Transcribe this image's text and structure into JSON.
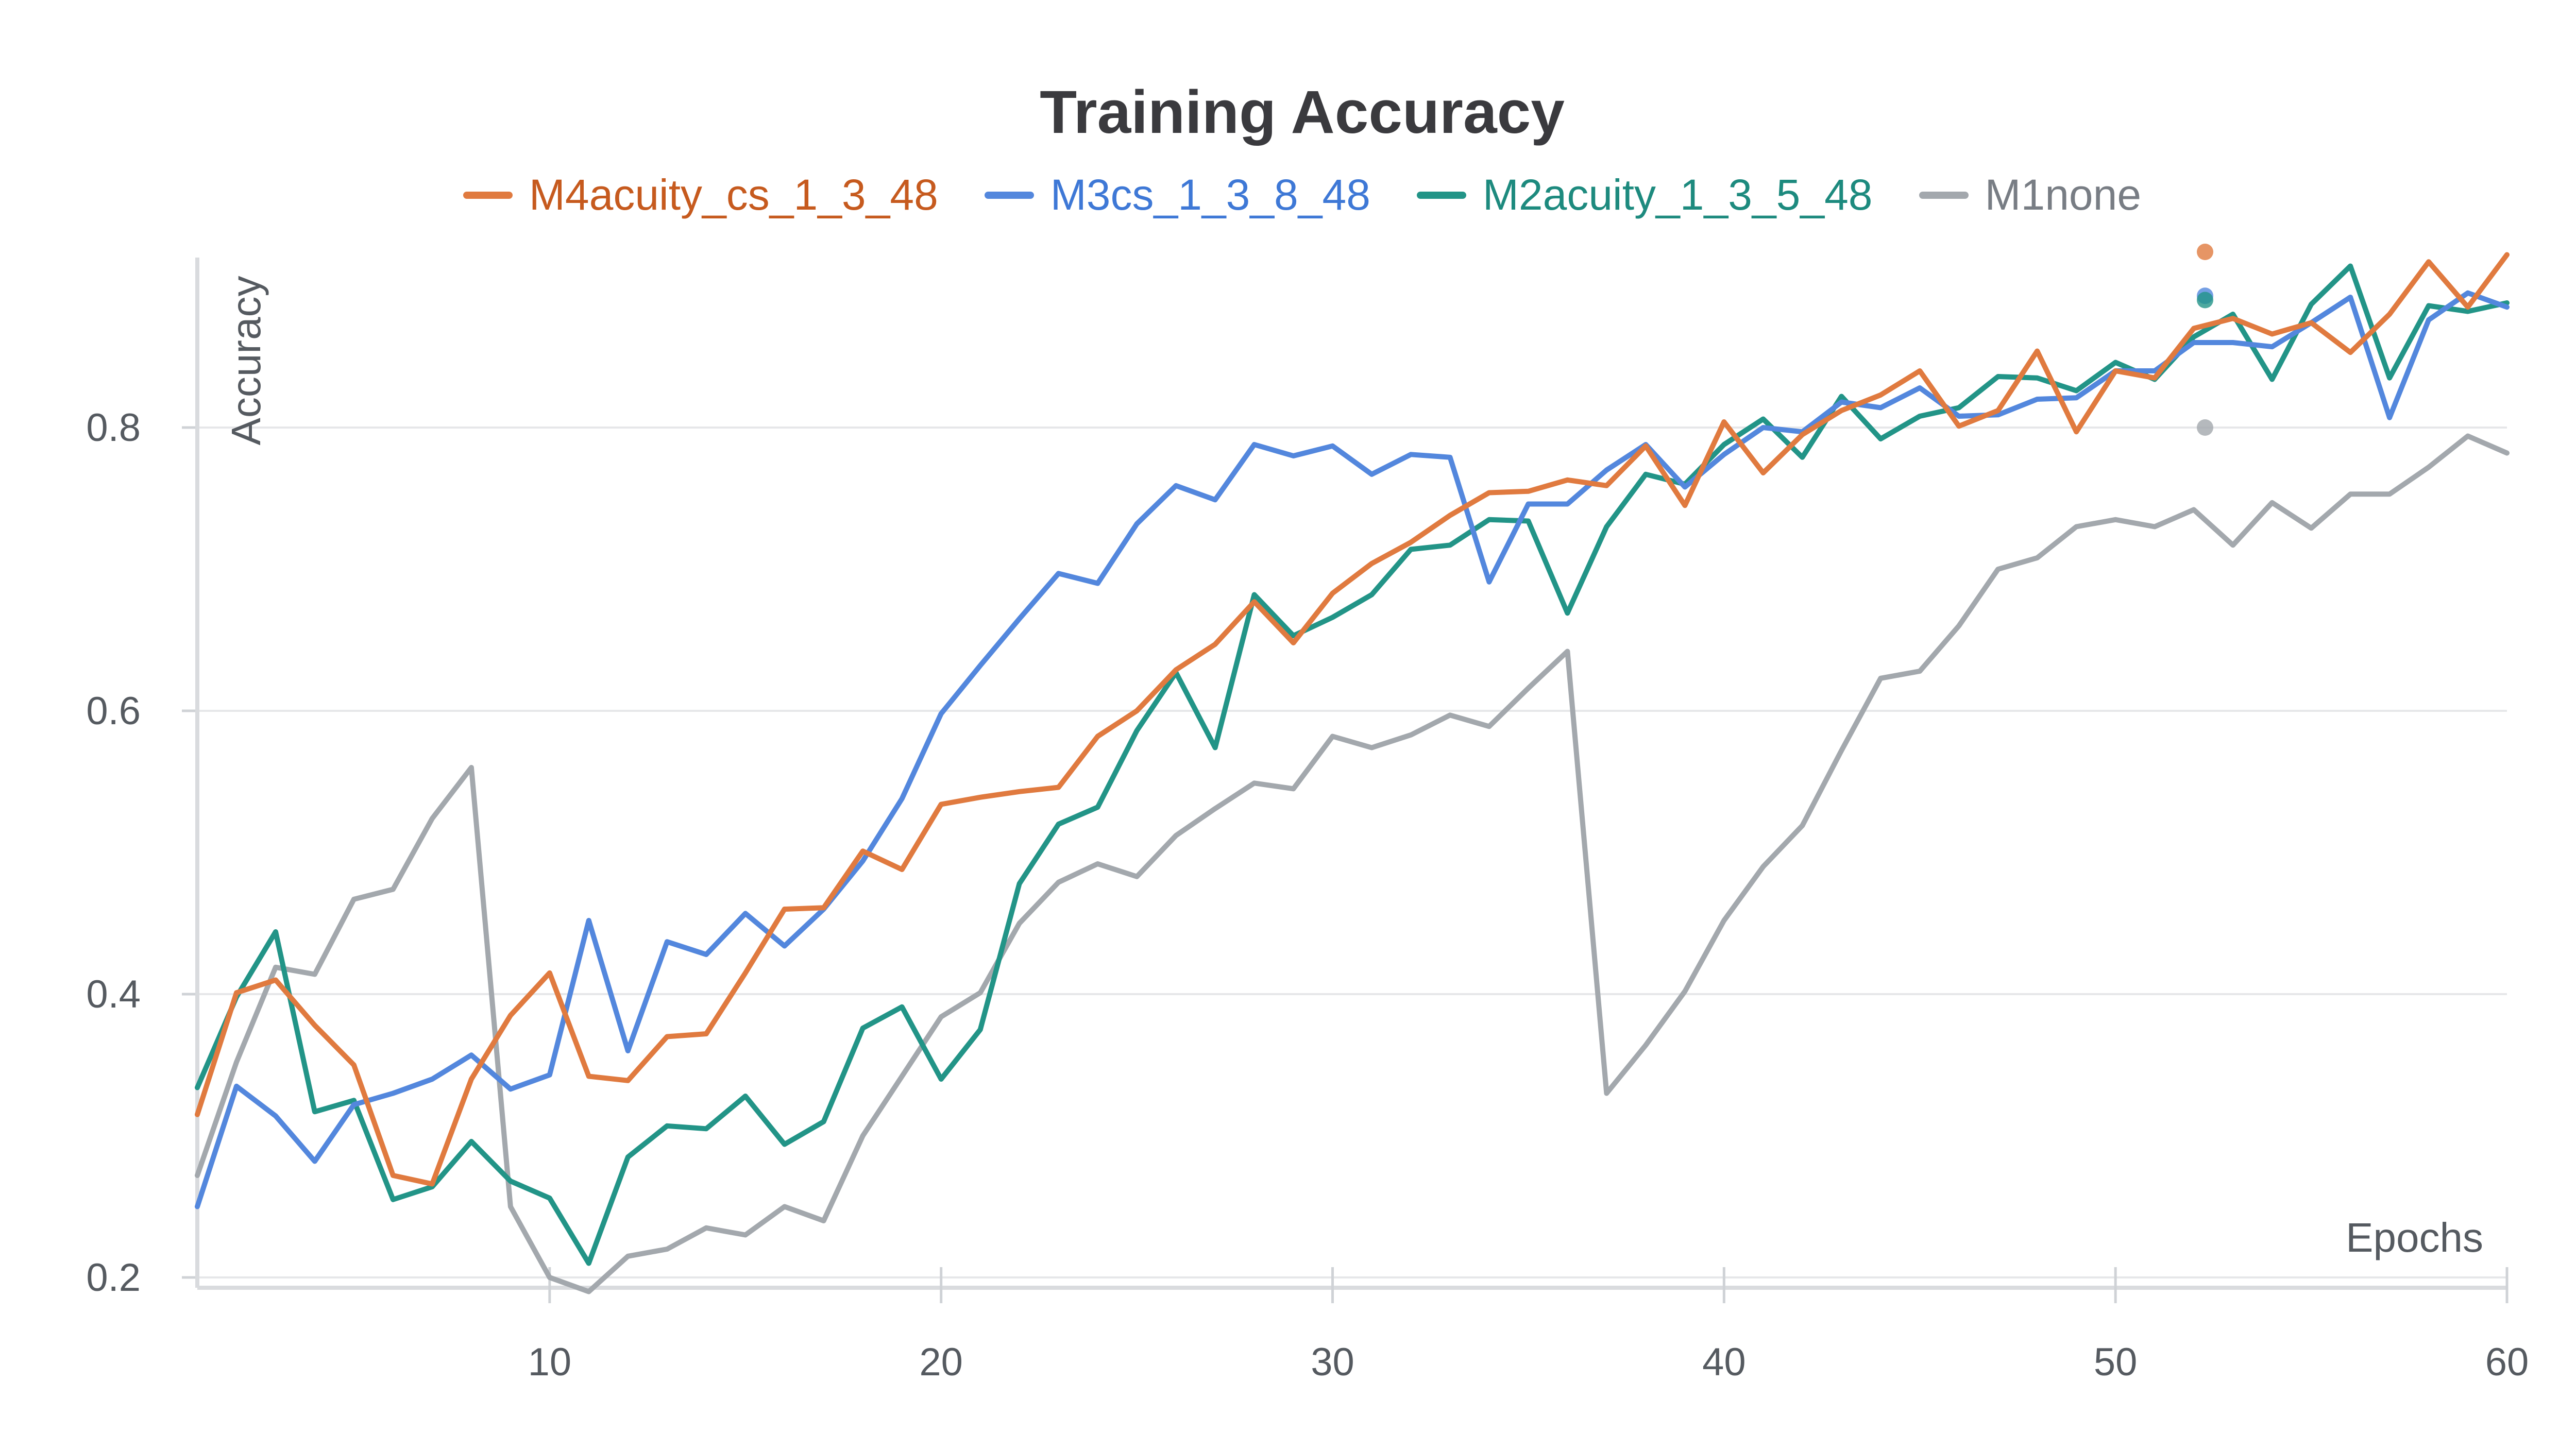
{
  "chart_data": {
    "type": "line",
    "title": "Training Accuracy",
    "xlabel": "Epochs",
    "ylabel": "Accuracy",
    "xlim": [
      1,
      60
    ],
    "ylim": [
      0.2,
      0.92
    ],
    "x_ticks": [
      10,
      20,
      30,
      40,
      50,
      60
    ],
    "y_ticks": [
      0.2,
      0.4,
      0.6,
      0.8
    ],
    "x_tick_labels": [
      "10",
      "20",
      "30",
      "40",
      "50",
      "60"
    ],
    "y_tick_labels": [
      "0.2",
      "0.4",
      "0.6",
      "0.8"
    ],
    "grid": true,
    "legend": "top-center",
    "series": [
      {
        "name": "M4acuity_cs_1_3_48",
        "color": "#e07a3f",
        "x": [
          1,
          2,
          3,
          4,
          5,
          6,
          7,
          8,
          9,
          10,
          11,
          12,
          13,
          14,
          15,
          16,
          17,
          18,
          19,
          20,
          21,
          22,
          23,
          24,
          25,
          26,
          27,
          28,
          29,
          30,
          31,
          32,
          33,
          34,
          35,
          36,
          37,
          38,
          39,
          40,
          41,
          42,
          43,
          44,
          45,
          46,
          47,
          48,
          49,
          50,
          51,
          52,
          53,
          54,
          55,
          56,
          57,
          58,
          59,
          60
        ],
        "values": [
          0.315,
          0.401,
          0.41,
          0.378,
          0.35,
          0.272,
          0.266,
          0.34,
          0.385,
          0.415,
          0.342,
          0.339,
          0.37,
          0.372,
          0.415,
          0.46,
          0.461,
          0.501,
          0.488,
          0.534,
          0.539,
          0.543,
          0.546,
          0.582,
          0.6,
          0.629,
          0.647,
          0.677,
          0.648,
          0.683,
          0.704,
          0.719,
          0.738,
          0.754,
          0.755,
          0.763,
          0.759,
          0.787,
          0.745,
          0.804,
          0.768,
          0.795,
          0.812,
          0.823,
          0.84,
          0.801,
          0.812,
          0.854,
          0.797,
          0.84,
          0.835,
          0.87,
          0.877,
          0.866,
          0.874,
          0.853,
          0.88,
          0.917,
          0.885,
          0.922
        ]
      },
      {
        "name": "M3cs_1_3_8_48",
        "color": "#5387dd",
        "x": [
          1,
          2,
          3,
          4,
          5,
          6,
          7,
          8,
          9,
          10,
          11,
          12,
          13,
          14,
          15,
          16,
          17,
          18,
          19,
          20,
          21,
          22,
          23,
          24,
          25,
          26,
          27,
          28,
          29,
          30,
          31,
          32,
          33,
          34,
          35,
          36,
          37,
          38,
          39,
          40,
          41,
          42,
          43,
          44,
          45,
          46,
          47,
          48,
          49,
          50,
          51,
          52,
          53,
          54,
          55,
          56,
          57,
          58,
          59,
          60
        ],
        "values": [
          0.25,
          0.335,
          0.314,
          0.282,
          0.322,
          0.33,
          0.34,
          0.357,
          0.333,
          0.343,
          0.452,
          0.36,
          0.437,
          0.428,
          0.457,
          0.434,
          0.46,
          0.494,
          0.538,
          0.598,
          0.632,
          0.665,
          0.697,
          0.69,
          0.732,
          0.759,
          0.749,
          0.788,
          0.78,
          0.787,
          0.767,
          0.781,
          0.779,
          0.691,
          0.746,
          0.746,
          0.77,
          0.788,
          0.758,
          0.781,
          0.8,
          0.797,
          0.818,
          0.814,
          0.828,
          0.808,
          0.809,
          0.82,
          0.821,
          0.84,
          0.84,
          0.86,
          0.86,
          0.857,
          0.874,
          0.892,
          0.807,
          0.876,
          0.895,
          0.885
        ]
      },
      {
        "name": "M2acuity_1_3_5_48",
        "color": "#229487",
        "x": [
          1,
          2,
          3,
          4,
          5,
          6,
          7,
          8,
          9,
          10,
          11,
          12,
          13,
          14,
          15,
          16,
          17,
          18,
          19,
          20,
          21,
          22,
          23,
          24,
          25,
          26,
          27,
          28,
          29,
          30,
          31,
          32,
          33,
          34,
          35,
          36,
          37,
          38,
          39,
          40,
          41,
          42,
          43,
          44,
          45,
          46,
          47,
          48,
          49,
          50,
          51,
          52,
          53,
          54,
          55,
          56,
          57,
          58,
          59,
          60
        ],
        "values": [
          0.334,
          0.398,
          0.444,
          0.317,
          0.325,
          0.255,
          0.264,
          0.296,
          0.268,
          0.256,
          0.21,
          0.285,
          0.307,
          0.305,
          0.328,
          0.294,
          0.31,
          0.376,
          0.391,
          0.34,
          0.375,
          0.478,
          0.52,
          0.532,
          0.586,
          0.627,
          0.574,
          0.682,
          0.653,
          0.666,
          0.682,
          0.714,
          0.717,
          0.735,
          0.734,
          0.669,
          0.73,
          0.767,
          0.76,
          0.788,
          0.806,
          0.779,
          0.822,
          0.792,
          0.808,
          0.814,
          0.836,
          0.835,
          0.826,
          0.846,
          0.834,
          0.864,
          0.88,
          0.834,
          0.887,
          0.914,
          0.835,
          0.886,
          0.882,
          0.888
        ]
      },
      {
        "name": "M1none",
        "color": "#a3a8ad",
        "x": [
          1,
          2,
          3,
          4,
          5,
          6,
          7,
          8,
          9,
          10,
          11,
          12,
          13,
          14,
          15,
          16,
          17,
          18,
          19,
          20,
          21,
          22,
          23,
          24,
          25,
          26,
          27,
          28,
          29,
          30,
          31,
          32,
          33,
          34,
          35,
          36,
          37,
          38,
          39,
          40,
          41,
          42,
          43,
          44,
          45,
          46,
          47,
          48,
          49,
          50,
          51,
          52,
          53,
          54,
          55,
          56,
          57,
          58,
          59,
          60
        ],
        "values": [
          0.272,
          0.352,
          0.419,
          0.414,
          0.467,
          0.474,
          0.524,
          0.56,
          0.25,
          0.2,
          0.19,
          0.215,
          0.22,
          0.235,
          0.23,
          0.25,
          0.24,
          0.3,
          0.342,
          0.384,
          0.401,
          0.45,
          0.479,
          0.492,
          0.483,
          0.512,
          0.531,
          0.549,
          0.545,
          0.582,
          0.574,
          0.583,
          0.597,
          0.589,
          0.616,
          0.642,
          0.33,
          0.364,
          0.402,
          0.452,
          0.49,
          0.519,
          0.572,
          0.623,
          0.628,
          0.66,
          0.7,
          0.708,
          0.73,
          0.735,
          0.73,
          0.742,
          0.717,
          0.747,
          0.729,
          0.753,
          0.753,
          0.772,
          0.794,
          0.782
        ]
      }
    ],
    "hover_points": [
      0.924,
      0.893,
      0.89,
      0.8
    ]
  }
}
